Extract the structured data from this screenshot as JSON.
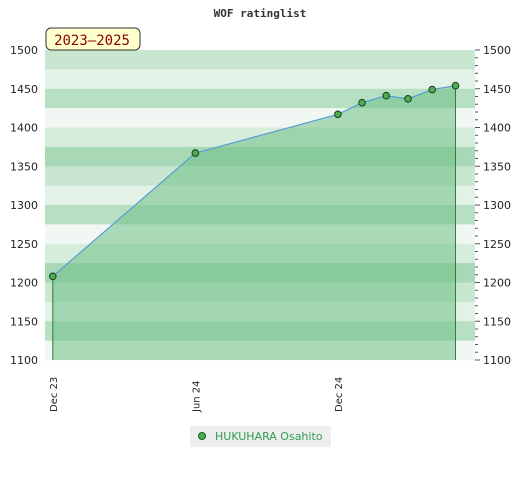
{
  "chart_data": {
    "type": "area",
    "title": "WOF ratinglist",
    "annotation": "2023–2025",
    "x_ticks": [
      {
        "label": "Dec 23",
        "x": "2023-12"
      },
      {
        "label": "Jun 24",
        "x": "2024-06"
      },
      {
        "label": "Dec 24",
        "x": "2024-12"
      }
    ],
    "y_ticks": [
      1100,
      1150,
      1200,
      1250,
      1300,
      1350,
      1400,
      1450,
      1500
    ],
    "ylim": [
      1100,
      1500
    ],
    "xlim": [
      "2023-11-21",
      "2025-05-26"
    ],
    "series": [
      {
        "name": "HUKUHARA Osahito",
        "x": [
          "2023-12-01",
          "2024-06-01",
          "2024-12-01",
          "2025-01-01",
          "2025-02-01",
          "2025-03-01",
          "2025-04-01",
          "2025-05-01"
        ],
        "values": [
          1208,
          1367,
          1417,
          1432,
          1441,
          1437,
          1449,
          1454
        ]
      }
    ],
    "legend": "bottom-center",
    "colors": {
      "line": "#5b9bd5",
      "fill": "#6fbf86",
      "marker": "#4caf50",
      "legend_text": "#2e9e4f",
      "annotation_bg": "#ffffcc",
      "annotation_text": "#8b0000"
    }
  }
}
